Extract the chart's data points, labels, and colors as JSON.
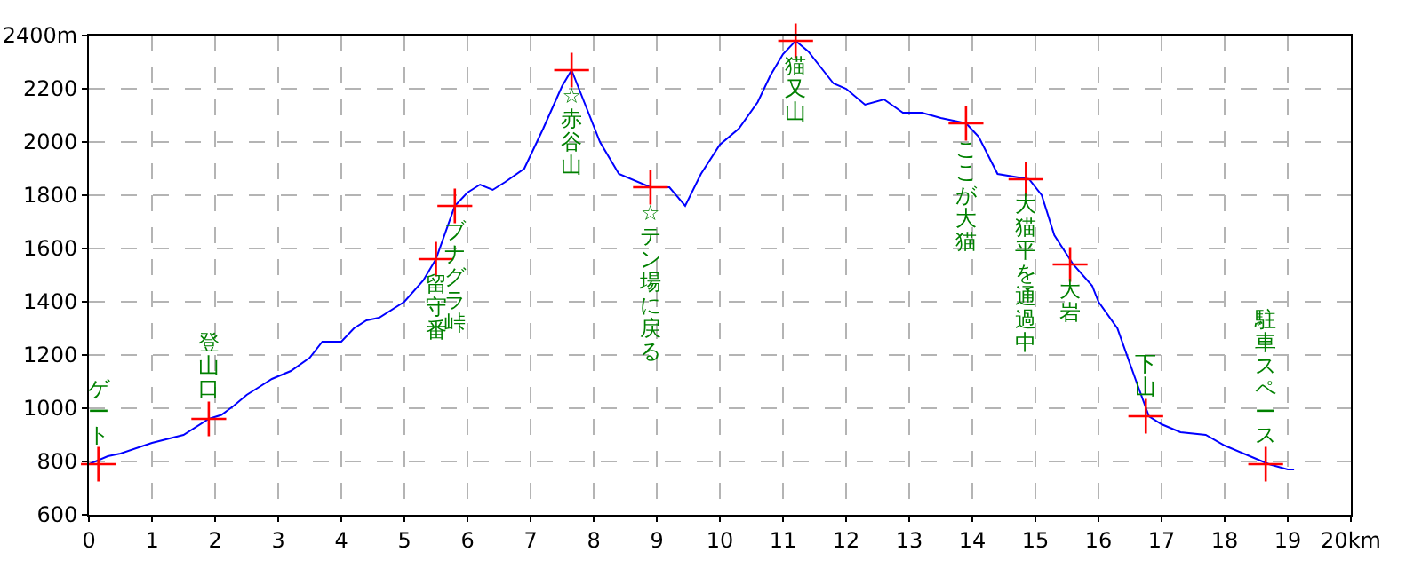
{
  "chart_data": {
    "type": "line",
    "x": [
      0,
      0.3,
      0.5,
      1,
      1.5,
      1.9,
      2.1,
      2.3,
      2.5,
      2.7,
      2.9,
      3.2,
      3.5,
      3.7,
      4.0,
      4.2,
      4.4,
      4.6,
      5.0,
      5.3,
      5.5,
      5.8,
      6.0,
      6.2,
      6.4,
      6.6,
      6.9,
      7.2,
      7.5,
      7.65,
      7.8,
      8.1,
      8.4,
      8.9,
      9.2,
      9.45,
      9.7,
      10.0,
      10.3,
      10.6,
      10.8,
      11.0,
      11.2,
      11.4,
      11.6,
      11.8,
      12.0,
      12.3,
      12.6,
      12.9,
      13.2,
      13.5,
      13.9,
      14.1,
      14.4,
      14.9,
      15.1,
      15.3,
      15.6,
      15.9,
      16.0,
      16.3,
      16.6,
      16.8,
      17.0,
      17.3,
      17.7,
      18.0,
      18.3,
      18.7,
      19.0,
      19.1
    ],
    "series": [
      {
        "color": "#0000ff",
        "marker": "none",
        "values": [
          790,
          820,
          830,
          870,
          900,
          960,
          975,
          1010,
          1050,
          1080,
          1110,
          1140,
          1190,
          1250,
          1250,
          1300,
          1330,
          1340,
          1400,
          1480,
          1560,
          1760,
          1810,
          1840,
          1820,
          1850,
          1900,
          2050,
          2210,
          2270,
          2180,
          2000,
          1880,
          1830,
          1830,
          1760,
          1880,
          1990,
          2050,
          2150,
          2250,
          2330,
          2380,
          2340,
          2280,
          2220,
          2200,
          2140,
          2160,
          2110,
          2110,
          2090,
          2070,
          2020,
          1880,
          1860,
          1800,
          1650,
          1540,
          1460,
          1400,
          1300,
          1100,
          970,
          940,
          910,
          900,
          860,
          830,
          790,
          770,
          770
        ]
      },
      {
        "type": "scatter",
        "color": "#ff0000",
        "marker": "cross",
        "x": [
          0.15,
          1.9,
          5.5,
          5.8,
          7.65,
          8.9,
          11.2,
          13.9,
          14.85,
          15.55,
          16.75,
          18.65
        ],
        "values": [
          790,
          960,
          1560,
          1760,
          2270,
          1830,
          2380,
          2070,
          1860,
          1540,
          970,
          790
        ]
      }
    ],
    "xlim": [
      0,
      20
    ],
    "xticks": [
      0,
      1,
      2,
      3,
      4,
      5,
      6,
      7,
      8,
      9,
      10,
      11,
      12,
      13,
      14,
      15,
      16,
      17,
      18,
      19,
      {
        "value": 20,
        "label": "20km"
      }
    ],
    "ylim": [
      600,
      2400
    ],
    "yticks": [
      600,
      800,
      1000,
      1200,
      1400,
      1600,
      1800,
      2000,
      2200,
      {
        "value": 2400,
        "label": "2400m"
      }
    ],
    "grid": true,
    "annotations": [
      {
        "text": "ゲート",
        "x": 0.15,
        "y": 790
      },
      {
        "text": "登山口",
        "x": 1.9,
        "y": 960
      },
      {
        "text": "留守番",
        "x": 5.5,
        "y": 1560
      },
      {
        "text": "ブナグラ峠",
        "x": 5.8,
        "y": 1760
      },
      {
        "text": "☆赤谷山",
        "x": 7.65,
        "y": 2270
      },
      {
        "text": "☆テン場に戻る",
        "x": 8.9,
        "y": 1830
      },
      {
        "text": "猫又山",
        "x": 11.2,
        "y": 2380
      },
      {
        "text": "ここが大猫",
        "x": 13.9,
        "y": 2070
      },
      {
        "text": "大猫平を通過中",
        "x": 14.85,
        "y": 1860
      },
      {
        "text": "大岩",
        "x": 15.55,
        "y": 1540
      },
      {
        "text": "下山",
        "x": 16.75,
        "y": 970
      },
      {
        "text": "駐車スペース",
        "x": 18.65,
        "y": 790
      }
    ]
  }
}
